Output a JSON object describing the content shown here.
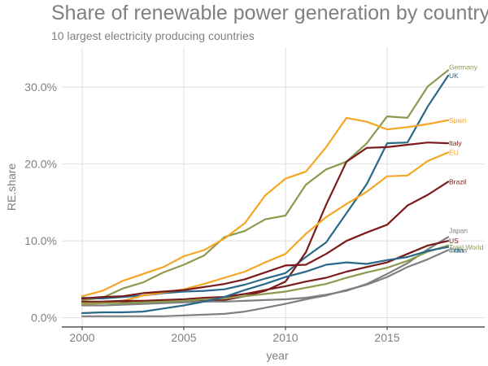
{
  "chart_data": {
    "type": "line",
    "title": "Share of renewable power generation by country",
    "subtitle": "10 largest electricity producing countries",
    "xlabel": "year",
    "ylabel": "RE.share",
    "xlim": [
      1999,
      2019.8
    ],
    "ylim": [
      -0.012,
      0.352
    ],
    "x_ticks": [
      2000,
      2005,
      2010,
      2015
    ],
    "y_ticks": [
      0.0,
      0.1,
      0.2,
      0.3
    ],
    "y_tick_labels": [
      "0.0%",
      "10.0%",
      "20.0%",
      "30.0%"
    ],
    "grid": true,
    "legend": "direct labels at line ends",
    "x": [
      2000,
      2001,
      2002,
      2003,
      2004,
      2005,
      2006,
      2007,
      2008,
      2009,
      2010,
      2011,
      2012,
      2013,
      2014,
      2015,
      2016,
      2017,
      2018
    ],
    "series": [
      {
        "name": "Germany",
        "color": "#8c9a4f",
        "values": [
          0.023,
          0.026,
          0.038,
          0.046,
          0.059,
          0.069,
          0.081,
          0.105,
          0.113,
          0.128,
          0.133,
          0.173,
          0.193,
          0.203,
          0.227,
          0.262,
          0.26,
          0.301,
          0.322
        ]
      },
      {
        "name": "UK",
        "color": "#2a6889",
        "values": [
          0.026,
          0.025,
          0.027,
          0.029,
          0.032,
          0.034,
          0.035,
          0.037,
          0.043,
          0.051,
          0.058,
          0.079,
          0.098,
          0.136,
          0.174,
          0.227,
          0.228,
          0.275,
          0.315
        ]
      },
      {
        "name": "Spain",
        "color": "#f5a623",
        "values": [
          0.028,
          0.035,
          0.048,
          0.057,
          0.066,
          0.08,
          0.088,
          0.103,
          0.123,
          0.159,
          0.181,
          0.19,
          0.222,
          0.26,
          0.255,
          0.245,
          0.248,
          0.252,
          0.257
        ]
      },
      {
        "name": "Italy",
        "color": "#7a1a1a",
        "values": [
          0.019,
          0.02,
          0.02,
          0.019,
          0.022,
          0.022,
          0.023,
          0.023,
          0.028,
          0.035,
          0.047,
          0.085,
          0.147,
          0.203,
          0.221,
          0.222,
          0.225,
          0.228,
          0.227
        ]
      },
      {
        "name": "EU",
        "color": "#f5a623",
        "values": [
          0.017,
          0.019,
          0.022,
          0.029,
          0.033,
          0.037,
          0.044,
          0.052,
          0.06,
          0.072,
          0.083,
          0.109,
          0.131,
          0.148,
          0.164,
          0.184,
          0.185,
          0.204,
          0.215
        ]
      },
      {
        "name": "Brazil",
        "color": "#7a1a1a",
        "values": [
          0.025,
          0.027,
          0.028,
          0.032,
          0.034,
          0.036,
          0.04,
          0.044,
          0.05,
          0.059,
          0.068,
          0.069,
          0.083,
          0.1,
          0.111,
          0.121,
          0.146,
          0.16,
          0.177
        ]
      },
      {
        "name": "Japan",
        "color": "#7f7f7f",
        "values": [
          0.016,
          0.016,
          0.017,
          0.018,
          0.019,
          0.02,
          0.021,
          0.021,
          0.022,
          0.023,
          0.024,
          0.026,
          0.03,
          0.035,
          0.044,
          0.057,
          0.071,
          0.089,
          0.105
        ]
      },
      {
        "name": "US",
        "color": "#7a1a1a",
        "values": [
          0.021,
          0.021,
          0.022,
          0.022,
          0.023,
          0.024,
          0.026,
          0.027,
          0.031,
          0.036,
          0.041,
          0.047,
          0.052,
          0.06,
          0.066,
          0.072,
          0.083,
          0.094,
          0.1
        ]
      },
      {
        "name": "Total World",
        "color": "#8c9a4f",
        "values": [
          0.019,
          0.019,
          0.019,
          0.02,
          0.021,
          0.022,
          0.024,
          0.025,
          0.028,
          0.031,
          0.034,
          0.039,
          0.044,
          0.052,
          0.059,
          0.065,
          0.074,
          0.086,
          0.094
        ]
      },
      {
        "name": "China",
        "color": "#7f7f7f",
        "values": [
          0.002,
          0.002,
          0.002,
          0.002,
          0.002,
          0.003,
          0.004,
          0.005,
          0.008,
          0.013,
          0.018,
          0.024,
          0.029,
          0.036,
          0.043,
          0.053,
          0.066,
          0.076,
          0.088
        ]
      },
      {
        "name": "India",
        "color": "#2a6889",
        "values": [
          0.006,
          0.007,
          0.007,
          0.008,
          0.012,
          0.016,
          0.021,
          0.027,
          0.036,
          0.044,
          0.053,
          0.06,
          0.069,
          0.072,
          0.07,
          0.075,
          0.079,
          0.087,
          0.092
        ]
      }
    ]
  }
}
